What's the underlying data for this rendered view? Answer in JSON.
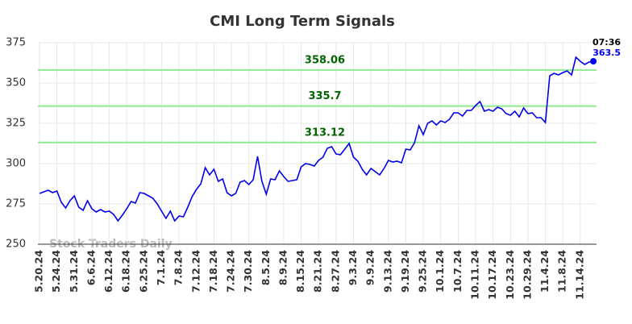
{
  "chart_data": {
    "type": "line",
    "title": "CMI Long Term Signals",
    "watermark": "Stock Traders Daily",
    "categories": [
      "5.20.24",
      null,
      null,
      null,
      "5.24.24",
      null,
      null,
      null,
      "5.31.24",
      null,
      null,
      null,
      "6.6.24",
      null,
      null,
      null,
      "6.12.24",
      null,
      null,
      null,
      "6.18.24",
      null,
      null,
      null,
      "6.25.24",
      null,
      null,
      null,
      "7.1.24",
      null,
      null,
      null,
      "7.8.24",
      null,
      null,
      null,
      "7.12.24",
      null,
      null,
      null,
      "7.18.24",
      null,
      null,
      null,
      "7.24.24",
      null,
      null,
      null,
      "7.30.24",
      null,
      null,
      null,
      "8.5.24",
      null,
      null,
      null,
      "8.9.24",
      null,
      null,
      null,
      "8.15.24",
      null,
      null,
      null,
      "8.21.24",
      null,
      null,
      null,
      "8.27.24",
      null,
      null,
      null,
      "9.3.24",
      null,
      null,
      null,
      "9.9.24",
      null,
      null,
      null,
      "9.13.24",
      null,
      null,
      null,
      "9.19.24",
      null,
      null,
      null,
      "9.25.24",
      null,
      null,
      null,
      "10.1.24",
      null,
      null,
      null,
      "10.7.24",
      null,
      null,
      null,
      "10.11.24",
      null,
      null,
      null,
      "10.17.24",
      null,
      null,
      null,
      "10.23.24",
      null,
      null,
      null,
      "10.29.24",
      null,
      null,
      null,
      "11.4.24",
      null,
      null,
      null,
      "11.8.24",
      null,
      null,
      null,
      "11.14.24",
      null,
      null,
      null
    ],
    "values": [
      281.5,
      282.5,
      283.5,
      282,
      283,
      276,
      272.5,
      277,
      280,
      273,
      271,
      277,
      272,
      270,
      271.5,
      270,
      270.5,
      268.5,
      264.5,
      268,
      272,
      276.5,
      275.5,
      282,
      281.5,
      280,
      278.5,
      275,
      270.5,
      266,
      270.5,
      264.5,
      267.5,
      267,
      273,
      279.5,
      284,
      287.5,
      297.5,
      293,
      296.5,
      289,
      290.5,
      282,
      280,
      281.5,
      288.5,
      289.5,
      287,
      290,
      304.5,
      289,
      281,
      290.5,
      290,
      295.5,
      292,
      289,
      289.5,
      290,
      298,
      300,
      299.5,
      298.5,
      302,
      304,
      309.5,
      310.5,
      306,
      305.5,
      309,
      312.5,
      304,
      301.5,
      296.5,
      293,
      297,
      295,
      293,
      297,
      302,
      301,
      301.5,
      300.5,
      309,
      308.5,
      313,
      323.5,
      318,
      325,
      326.5,
      324,
      326.5,
      325.5,
      327.5,
      331.5,
      331.5,
      329.5,
      333,
      333,
      336,
      338.5,
      332.5,
      333.5,
      332.5,
      335,
      334,
      331,
      330,
      332.5,
      329,
      334.5,
      331,
      331.5,
      328.5,
      328.5,
      325.5,
      354.5,
      356,
      355,
      356.5,
      357.5,
      355,
      366,
      363.5,
      361.5,
      363,
      363.5
    ],
    "color": "#0000ee",
    "ylim": [
      250,
      375
    ],
    "yticks": [
      250,
      275,
      300,
      325,
      350,
      375
    ],
    "grid": true,
    "hlines": [
      358.06,
      335.7,
      313.12
    ],
    "hline_color": "#90e890",
    "hline_label_color": "#006400",
    "last_time": "07:36"
  }
}
